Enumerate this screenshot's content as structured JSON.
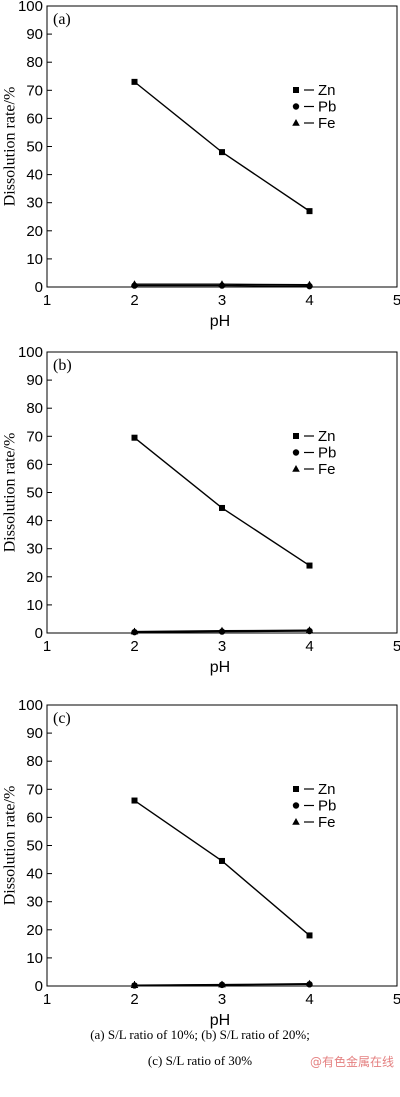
{
  "chart_data": [
    {
      "type": "line",
      "panel_label": "(a)",
      "xlabel": "pH",
      "ylabel": "Dissolution rate/%",
      "xlim": [
        1,
        5
      ],
      "ylim": [
        0,
        100
      ],
      "xticks": [
        1,
        2,
        3,
        4,
        5
      ],
      "yticks": [
        0,
        10,
        20,
        30,
        40,
        50,
        60,
        70,
        80,
        90,
        100
      ],
      "legend_position": "right",
      "x": [
        2,
        3,
        4
      ],
      "series": [
        {
          "name": "Zn",
          "marker": "square",
          "values": [
            73,
            48,
            27
          ]
        },
        {
          "name": "Pb",
          "marker": "circle",
          "values": [
            0.5,
            0.5,
            0.3
          ]
        },
        {
          "name": "Fe",
          "marker": "triangle",
          "values": [
            1,
            1,
            0.8
          ]
        }
      ]
    },
    {
      "type": "line",
      "panel_label": "(b)",
      "xlabel": "pH",
      "ylabel": "Dissolution rate/%",
      "xlim": [
        1,
        5
      ],
      "ylim": [
        0,
        100
      ],
      "xticks": [
        1,
        2,
        3,
        4,
        5
      ],
      "yticks": [
        0,
        10,
        20,
        30,
        40,
        50,
        60,
        70,
        80,
        90,
        100
      ],
      "legend_position": "right",
      "x": [
        2,
        3,
        4
      ],
      "series": [
        {
          "name": "Zn",
          "marker": "square",
          "values": [
            69.5,
            44.5,
            24
          ]
        },
        {
          "name": "Pb",
          "marker": "circle",
          "values": [
            0.3,
            0.5,
            0.7
          ]
        },
        {
          "name": "Fe",
          "marker": "triangle",
          "values": [
            0.5,
            0.8,
            1
          ]
        }
      ]
    },
    {
      "type": "line",
      "panel_label": "(c)",
      "xlabel": "pH",
      "ylabel": "Dissolution rate/%",
      "xlim": [
        1,
        5
      ],
      "ylim": [
        0,
        100
      ],
      "xticks": [
        1,
        2,
        3,
        4,
        5
      ],
      "yticks": [
        0,
        10,
        20,
        30,
        40,
        50,
        60,
        70,
        80,
        90,
        100
      ],
      "legend_position": "right",
      "x": [
        2,
        3,
        4
      ],
      "series": [
        {
          "name": "Zn",
          "marker": "square",
          "values": [
            66,
            44.5,
            18
          ]
        },
        {
          "name": "Pb",
          "marker": "circle",
          "values": [
            0.2,
            0.4,
            0.6
          ]
        },
        {
          "name": "Fe",
          "marker": "triangle",
          "values": [
            0.3,
            0.5,
            0.8
          ]
        }
      ]
    }
  ],
  "caption": {
    "line1": "(a)  S/L  ratio  of  10%;  (b)  S/L  ratio  of  20%;",
    "line2": "(c) S/L ratio of 30%"
  },
  "watermark": "@有色金属在线"
}
